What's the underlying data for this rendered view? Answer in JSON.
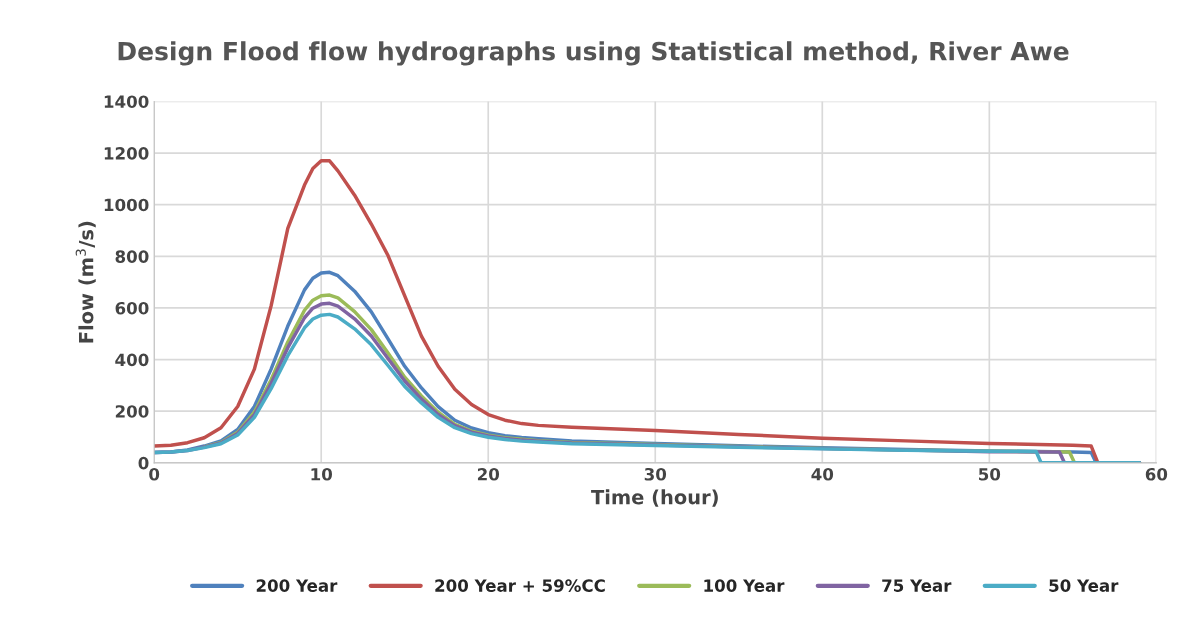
{
  "chart_data": {
    "type": "line",
    "title": "Design Flood flow hydrographs using Statistical method, River Awe",
    "xlabel": "Time (hour)",
    "ylabel": "Flow (m$^{3}$/s)",
    "xlim": [
      0,
      60
    ],
    "xticks": [
      0,
      10,
      20,
      30,
      40,
      50,
      60
    ],
    "ylim": [
      0,
      1400
    ],
    "yticks": [
      0,
      200,
      400,
      600,
      800,
      1000,
      1200,
      1400
    ],
    "grid": true,
    "legend": "bottom",
    "marker": "none",
    "line_style": "solid",
    "series": [
      {
        "name": "200 Year",
        "color": "#4f81bd",
        "x": [
          0,
          1,
          2,
          3,
          4,
          5,
          6,
          7,
          8,
          9,
          9.5,
          10,
          10.5,
          11,
          12,
          13,
          14,
          15,
          16,
          17,
          18,
          19,
          20,
          21,
          22,
          23,
          25,
          30,
          35,
          40,
          45,
          50,
          55,
          56.1,
          56.4,
          59
        ],
        "values": [
          40,
          42,
          50,
          65,
          85,
          129,
          218,
          363,
          530,
          670,
          715,
          735,
          738,
          725,
          665,
          585,
          480,
          374,
          290,
          218,
          165,
          135,
          117,
          105,
          98,
          93,
          85,
          75,
          66,
          58,
          52,
          46,
          42,
          40,
          0,
          0
        ]
      },
      {
        "name": "200 Year + 59%CC",
        "color": "#c0504d",
        "x": [
          0,
          1,
          2,
          3,
          4,
          5,
          6,
          7,
          8,
          9,
          9.5,
          10,
          10.5,
          11,
          12,
          13,
          14,
          15,
          16,
          17,
          18,
          19,
          20,
          21,
          22,
          23,
          25,
          30,
          35,
          40,
          45,
          50,
          55,
          56.1,
          56.5,
          59
        ],
        "values": [
          65,
          68,
          78,
          97,
          136,
          218,
          363,
          608,
          908,
          1076,
          1140,
          1170,
          1170,
          1131,
          1037,
          925,
          803,
          647,
          491,
          374,
          285,
          226,
          187,
          165,
          152,
          145,
          138,
          125,
          110,
          95,
          85,
          75,
          68,
          65,
          0,
          0
        ]
      },
      {
        "name": "100 Year",
        "color": "#9bbb59",
        "x": [
          3,
          4,
          5,
          6,
          7,
          8,
          9,
          9.5,
          10,
          10.5,
          11,
          12,
          13,
          14,
          15,
          16,
          17,
          18,
          19,
          20,
          21,
          22,
          23,
          25,
          30,
          35,
          40,
          45,
          50,
          54.8,
          55.1,
          59
        ],
        "values": [
          62,
          79,
          118,
          196,
          322,
          468,
          591,
          630,
          647,
          650,
          639,
          586,
          516,
          425,
          332,
          259,
          196,
          149,
          123,
          107,
          97,
          91,
          86,
          79,
          71,
          63,
          56,
          50,
          45,
          42,
          0,
          0
        ]
      },
      {
        "name": "75 Year",
        "color": "#8064a2",
        "x": [
          0,
          1,
          2,
          3,
          4,
          5,
          6,
          7,
          8,
          9,
          9.5,
          10,
          10.5,
          11,
          12,
          13,
          14,
          15,
          16,
          17,
          18,
          19,
          20,
          21,
          22,
          23,
          25,
          30,
          35,
          40,
          45,
          50,
          54.2,
          54.5,
          59
        ],
        "values": [
          40,
          42,
          48,
          61,
          77,
          114,
          187,
          307,
          446,
          562,
          599,
          615,
          618,
          607,
          558,
          491,
          404,
          317,
          247,
          187,
          144,
          119,
          104,
          94,
          88,
          84,
          77,
          69,
          62,
          55,
          50,
          43,
          42,
          0,
          0
        ]
      },
      {
        "name": "50 Year",
        "color": "#4bacc6",
        "x": [
          0,
          1,
          2,
          3,
          4,
          5,
          6,
          7,
          8,
          9,
          9.5,
          10,
          10.5,
          11,
          12,
          13,
          14,
          15,
          16,
          17,
          18,
          19,
          20,
          21,
          22,
          23,
          25,
          30,
          35,
          40,
          45,
          50,
          52.8,
          53.1,
          59
        ],
        "values": [
          40,
          42,
          48,
          59,
          74,
          108,
          176,
          287,
          415,
          523,
          557,
          572,
          575,
          565,
          519,
          457,
          377,
          296,
          232,
          176,
          136,
          113,
          99,
          90,
          84,
          81,
          74,
          67,
          60,
          54,
          49,
          45,
          44,
          0,
          0
        ]
      }
    ]
  }
}
